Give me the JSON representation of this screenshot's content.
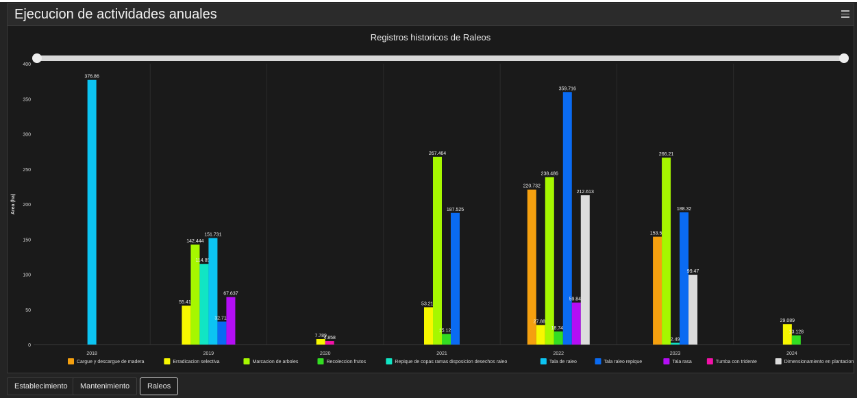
{
  "panel": {
    "title": "Ejecucion de actividades anuales",
    "menu_icon": "hamburger-menu-icon"
  },
  "tabs": [
    {
      "label": "Establecimiento",
      "active": false
    },
    {
      "label": "Mantenimiento",
      "active": false
    },
    {
      "label": "Raleos",
      "active": true
    }
  ],
  "chart_data": {
    "type": "bar",
    "title": "Registros historicos de Raleos",
    "xlabel": "",
    "ylabel": "Area (ha)",
    "ylim": [
      0,
      400
    ],
    "yticks": [
      0,
      50,
      100,
      150,
      200,
      250,
      300,
      350,
      400
    ],
    "grid": "vertical-category-dividers",
    "legend_position": "bottom",
    "categories": [
      "2018",
      "2019",
      "2020",
      "2021",
      "2022",
      "2023",
      "2024"
    ],
    "series": [
      {
        "name": "Cargue y descargue de madera",
        "color": "#f5a00f",
        "values": [
          null,
          null,
          null,
          null,
          220.732,
          153.58,
          null
        ]
      },
      {
        "name": "Erradicacion selectiva",
        "color": "#f7f700",
        "values": [
          null,
          55.414,
          7.789,
          53.211,
          27.886,
          null,
          29.089
        ]
      },
      {
        "name": "Marcacion de arboles",
        "color": "#a6f700",
        "values": [
          null,
          142.444,
          null,
          267.464,
          238.486,
          266.21,
          null
        ]
      },
      {
        "name": "Recoleccion frutos",
        "color": "#33dd22",
        "values": [
          null,
          null,
          null,
          15.124,
          18.744,
          null,
          13.128
        ]
      },
      {
        "name": "Repique de copas ramas disposicion desechos raleo",
        "color": "#11e5c4",
        "values": [
          null,
          114.891,
          null,
          null,
          null,
          2.49,
          null
        ]
      },
      {
        "name": "Tala de raleo",
        "color": "#0cc4f2",
        "values": [
          376.86,
          151.731,
          null,
          null,
          null,
          null,
          null
        ]
      },
      {
        "name": "Tala raleo repique",
        "color": "#0a6bf2",
        "values": [
          null,
          32.719,
          null,
          187.525,
          359.716,
          188.32,
          null
        ]
      },
      {
        "name": "Tala rasa",
        "color": "#b40ef5",
        "values": [
          null,
          67.637,
          null,
          null,
          59.849,
          null,
          null
        ]
      },
      {
        "name": "Tumba con tridente",
        "color": "#f212a8",
        "values": [
          null,
          null,
          4.858,
          null,
          null,
          null,
          null
        ]
      },
      {
        "name": "Dimensionamiento en plantacion",
        "color": "#dcdcdc",
        "values": [
          null,
          null,
          null,
          null,
          212.613,
          99.47,
          null
        ]
      }
    ]
  }
}
